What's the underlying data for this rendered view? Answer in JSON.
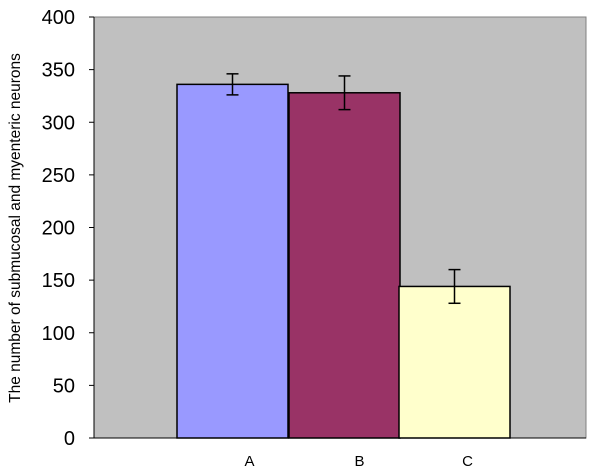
{
  "chart_data": {
    "type": "bar",
    "title": "",
    "xlabel": "",
    "ylabel": "The number of submucosal and myenteric neurons",
    "categories": [
      "A",
      "B",
      "C"
    ],
    "values": [
      336,
      328,
      144
    ],
    "error": [
      10,
      16,
      16
    ],
    "colors": [
      "#9999ff",
      "#993366",
      "#ffffcc"
    ],
    "ylim": [
      0,
      400
    ],
    "yticks": [
      "0",
      "50",
      "100",
      "150",
      "200",
      "250",
      "300",
      "350",
      "400"
    ],
    "plot_background": "#c0c0c0",
    "grid": false,
    "legend": "none"
  }
}
